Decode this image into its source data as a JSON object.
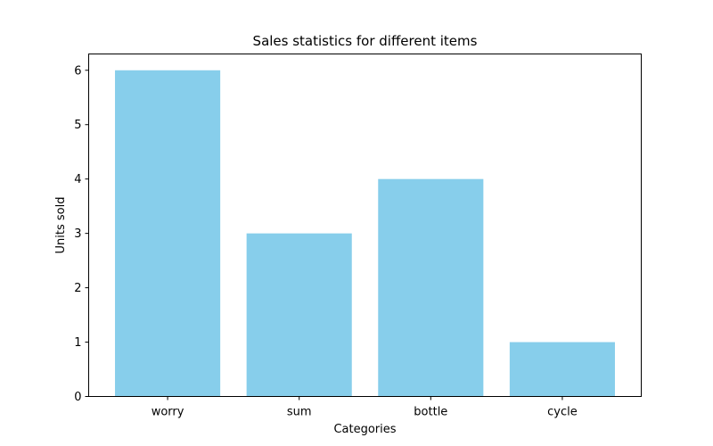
{
  "chart_data": {
    "type": "bar",
    "title": "Sales statistics for different items",
    "xlabel": "Categories",
    "ylabel": "Units sold",
    "categories": [
      "worry",
      "sum",
      "bottle",
      "cycle"
    ],
    "values": [
      6,
      3,
      4,
      1
    ],
    "ylim": [
      0,
      6.3
    ],
    "yticks": [
      0,
      1,
      2,
      3,
      4,
      5,
      6
    ],
    "bar_color": "#87ceeb",
    "grid": false,
    "legend": "none"
  }
}
